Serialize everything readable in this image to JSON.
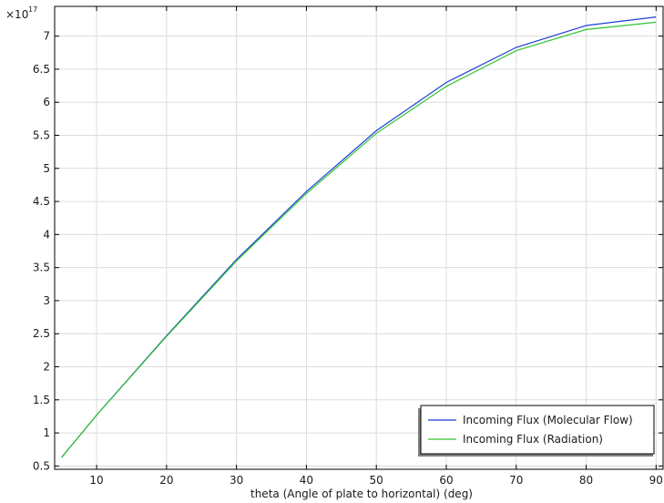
{
  "chart_data": {
    "type": "line",
    "xlabel": "theta (Angle of plate to horizontal) (deg)",
    "ylabel": "",
    "y_multiplier": "×10",
    "y_multiplier_exponent": "17",
    "xlim": [
      4,
      91
    ],
    "ylim": [
      0.45,
      7.45
    ],
    "x_ticks": [
      10,
      20,
      30,
      40,
      50,
      60,
      70,
      80,
      90
    ],
    "x_tick_labels": [
      "10",
      "20",
      "30",
      "40",
      "50",
      "60",
      "70",
      "80",
      "90"
    ],
    "y_ticks": [
      0.5,
      1,
      1.5,
      2,
      2.5,
      3,
      3.5,
      4,
      4.5,
      5,
      5.5,
      6,
      6.5,
      7
    ],
    "y_tick_labels": [
      "0.5",
      "1",
      "1.5",
      "2",
      "2.5",
      "3",
      "3.5",
      "4",
      "4.5",
      "5",
      "5.5",
      "6",
      "6.5",
      "7"
    ],
    "grid": true,
    "legend_position": "bottom-right",
    "x": [
      5,
      10,
      20,
      30,
      40,
      50,
      60,
      70,
      80,
      90
    ],
    "series": [
      {
        "name": "Incoming Flux (Molecular Flow)",
        "color": "#1f3fd6",
        "values": [
          0.63,
          1.27,
          2.47,
          3.62,
          4.65,
          5.57,
          6.3,
          6.83,
          7.16,
          7.29
        ]
      },
      {
        "name": "Incoming Flux (Radiation)",
        "color": "#2ec42e",
        "values": [
          0.63,
          1.27,
          2.46,
          3.6,
          4.62,
          5.53,
          6.24,
          6.78,
          7.1,
          7.21
        ]
      }
    ]
  }
}
